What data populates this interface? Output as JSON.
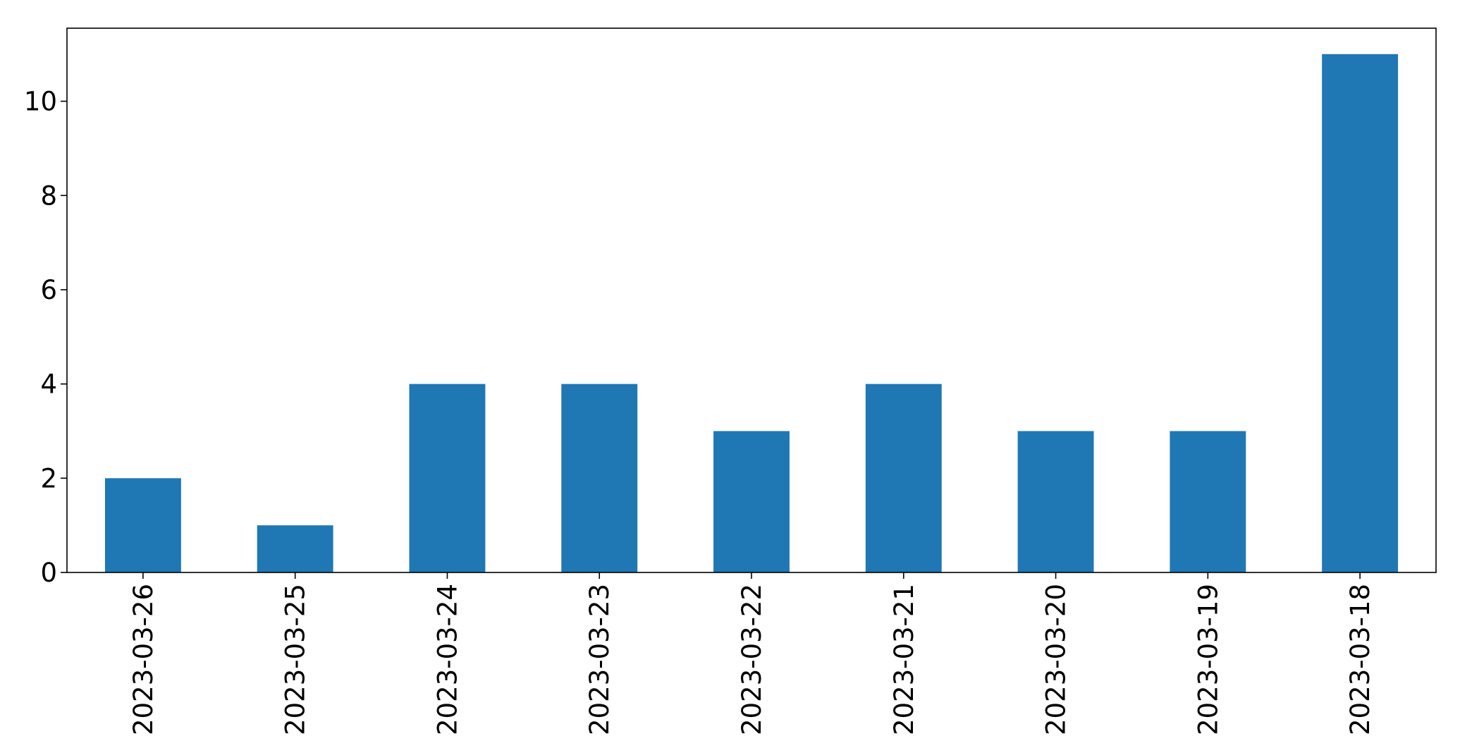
{
  "chart_data": {
    "type": "bar",
    "title": "",
    "xlabel": "",
    "ylabel": "",
    "categories": [
      "2023-03-26",
      "2023-03-25",
      "2023-03-24",
      "2023-03-23",
      "2023-03-22",
      "2023-03-21",
      "2023-03-20",
      "2023-03-19",
      "2023-03-18"
    ],
    "values": [
      2,
      1,
      4,
      4,
      3,
      4,
      3,
      3,
      11
    ],
    "ylim": [
      0,
      11.55
    ],
    "yticks": [
      0,
      2,
      4,
      6,
      8,
      10
    ],
    "grid": false,
    "legend": "none",
    "bar_color": "#1f77b4"
  }
}
